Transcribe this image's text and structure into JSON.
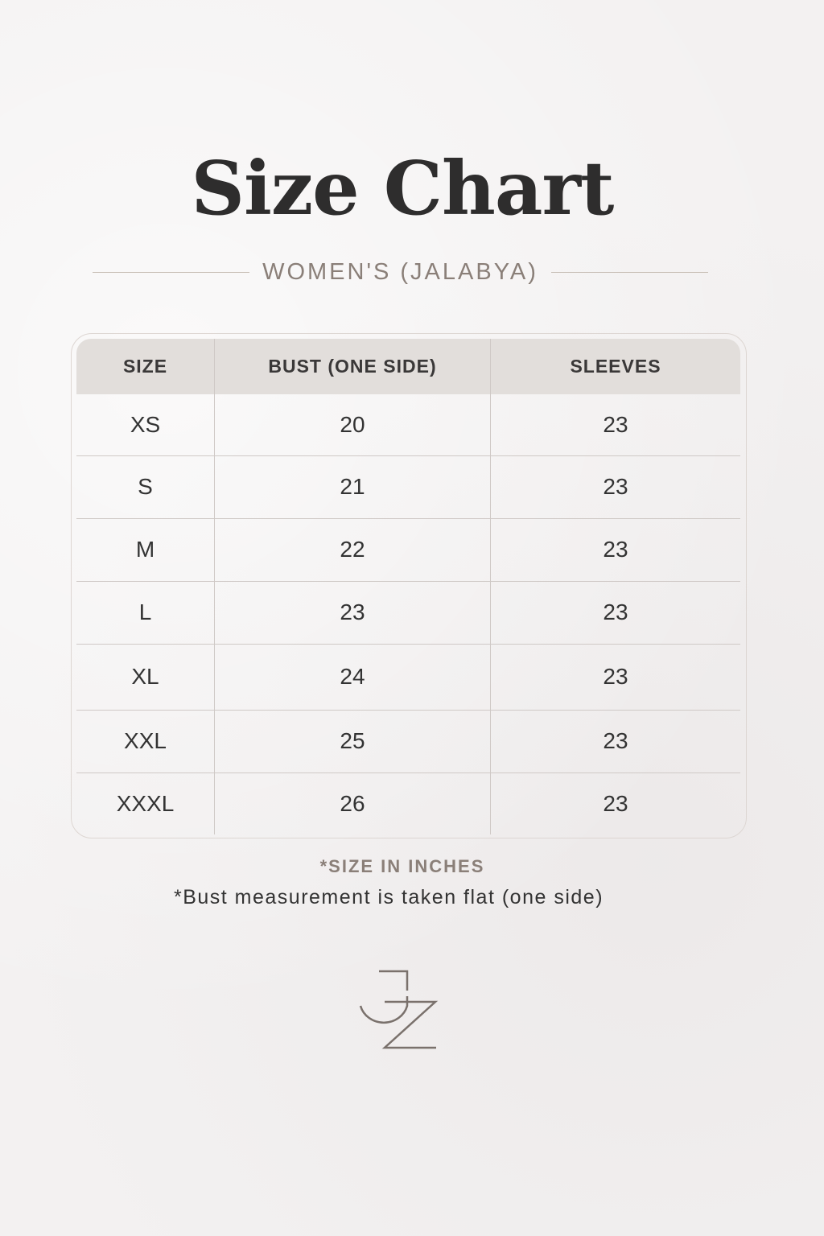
{
  "title": "Size Chart",
  "subtitle": "WOMEN'S (JALABYA)",
  "table": {
    "headers": [
      "SIZE",
      "BUST (ONE SIDE)",
      "SLEEVES"
    ],
    "rows": [
      [
        "XS",
        "20",
        "23"
      ],
      [
        "S",
        "21",
        "23"
      ],
      [
        "M",
        "22",
        "23"
      ],
      [
        "L",
        "23",
        "23"
      ],
      [
        "XL",
        "24",
        "23"
      ],
      [
        "XXL",
        "25",
        "23"
      ],
      [
        "XXXL",
        "26",
        "23"
      ]
    ]
  },
  "notes": {
    "unit": "*SIZE IN INCHES",
    "bust": "*Bust measurement is taken flat (one side)"
  },
  "logo": {
    "text": "JZ",
    "color": "#7a716c"
  }
}
